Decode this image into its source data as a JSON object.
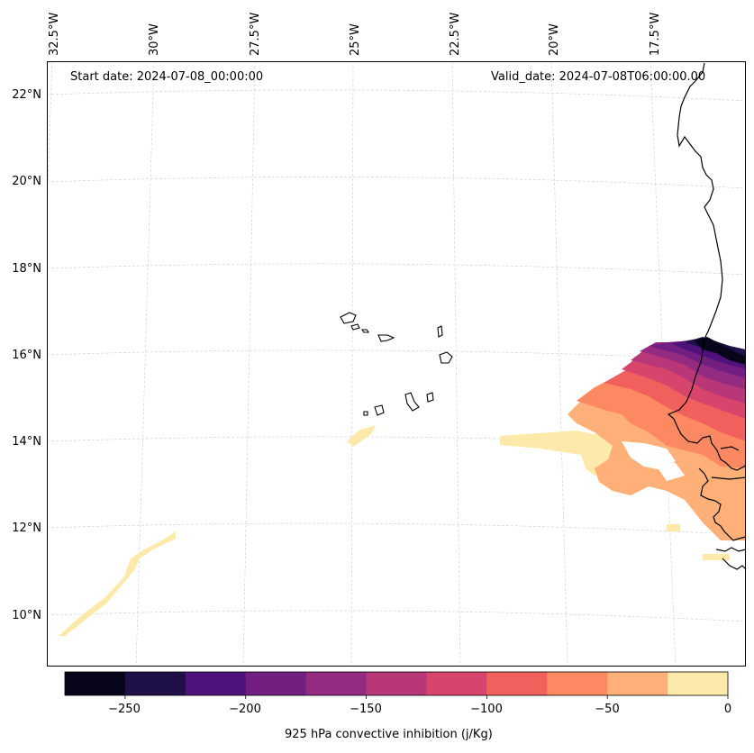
{
  "map": {
    "start_date_label": "Start date: 2024-07-08_00:00:00",
    "valid_date_label": "Valid_date: 2024-07-08T06:00:00.00",
    "lon_ticks": [
      "32.5°W",
      "30°W",
      "27.5°W",
      "25°W",
      "22.5°W",
      "20°W",
      "17.5°W"
    ],
    "lat_ticks": [
      "22°N",
      "20°N",
      "18°N",
      "16°N",
      "14°N",
      "12°N",
      "10°N"
    ],
    "grid": true,
    "projection": "conic",
    "coastline_color": "#000000"
  },
  "colorbar": {
    "label": "925 hPa convective inhibition (j/Kg)",
    "range": [
      -275,
      0
    ],
    "step": 25,
    "tick_labels": [
      "−250",
      "−200",
      "−150",
      "−100",
      "−50",
      "0"
    ],
    "colors": [
      "#06051a",
      "#1f1147",
      "#4f127b",
      "#721f81",
      "#932b80",
      "#b73779",
      "#d8456c",
      "#f1605d",
      "#fc8961",
      "#feb078",
      "#fde9a9"
    ]
  }
}
